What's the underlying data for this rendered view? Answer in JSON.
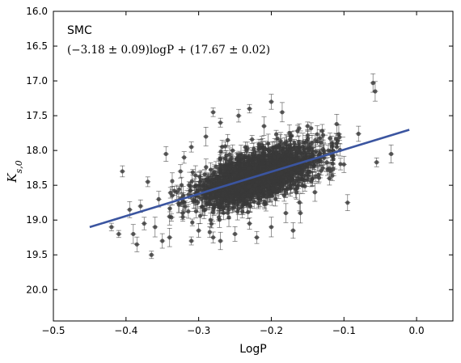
{
  "chart_data": {
    "type": "scatter",
    "title": "",
    "xlabel": "LogP",
    "ylabel_main": "K",
    "ylabel_sub": "s,0",
    "xlim": [
      -0.5,
      0.05
    ],
    "ylim": [
      16.0,
      20.45
    ],
    "y_inverted": true,
    "x_ticks": [
      -0.5,
      -0.4,
      -0.3,
      -0.2,
      -0.1,
      0.0
    ],
    "x_tick_labels": [
      "−0.5",
      "−0.4",
      "−0.3",
      "−0.2",
      "−0.1",
      "0.0"
    ],
    "y_ticks": [
      16.0,
      16.5,
      17.0,
      17.5,
      18.0,
      18.5,
      19.0,
      19.5,
      20.0
    ],
    "y_tick_labels": [
      "16.0",
      "16.5",
      "17.0",
      "17.5",
      "18.0",
      "18.5",
      "19.0",
      "19.5",
      "20.0"
    ],
    "grid": false,
    "annotation": {
      "title": "SMC",
      "formula": "(−3.18 ± 0.09)logP + (17.67 ± 0.02)"
    },
    "fit_line": {
      "slope": -3.18,
      "intercept": 17.67,
      "x_range": [
        -0.45,
        -0.01
      ],
      "color": "#3b55a0"
    },
    "point_color": "#3a3a3a",
    "series": [
      {
        "points": [
          [
            -0.06,
            17.03
          ],
          [
            -0.057,
            17.15
          ],
          [
            -0.055,
            18.17
          ],
          [
            -0.035,
            18.05
          ],
          [
            -0.08,
            17.76
          ],
          [
            -0.11,
            17.62
          ],
          [
            -0.095,
            18.75
          ],
          [
            -0.115,
            18.0
          ],
          [
            -0.13,
            17.72
          ],
          [
            -0.1,
            18.2
          ],
          [
            -0.405,
            18.3
          ],
          [
            -0.395,
            18.85
          ],
          [
            -0.37,
            18.45
          ],
          [
            -0.36,
            19.1
          ],
          [
            -0.355,
            18.7
          ],
          [
            -0.385,
            19.35
          ],
          [
            -0.39,
            19.2
          ],
          [
            -0.375,
            19.05
          ],
          [
            -0.42,
            19.1
          ],
          [
            -0.365,
            19.5
          ],
          [
            -0.35,
            19.3
          ],
          [
            -0.34,
            18.95
          ],
          [
            -0.33,
            18.6
          ],
          [
            -0.325,
            18.3
          ],
          [
            -0.32,
            18.1
          ],
          [
            -0.31,
            19.3
          ],
          [
            -0.3,
            19.15
          ],
          [
            -0.28,
            19.25
          ],
          [
            -0.28,
            17.45
          ],
          [
            -0.27,
            17.6
          ],
          [
            -0.26,
            17.85
          ],
          [
            -0.245,
            17.5
          ],
          [
            -0.23,
            17.4
          ],
          [
            -0.21,
            17.65
          ],
          [
            -0.2,
            17.3
          ],
          [
            -0.185,
            17.45
          ],
          [
            -0.175,
            17.75
          ],
          [
            -0.17,
            19.15
          ],
          [
            -0.25,
            19.2
          ],
          [
            -0.23,
            19.05
          ],
          [
            -0.22,
            19.25
          ],
          [
            -0.2,
            19.1
          ],
          [
            -0.18,
            18.9
          ],
          [
            -0.16,
            18.9
          ],
          [
            -0.15,
            17.65
          ],
          [
            -0.14,
            18.6
          ],
          [
            -0.135,
            18.35
          ],
          [
            -0.12,
            18.4
          ],
          [
            -0.29,
            17.8
          ],
          [
            -0.27,
            19.3
          ],
          [
            -0.34,
            19.25
          ],
          [
            -0.345,
            18.05
          ],
          [
            -0.31,
            17.95
          ],
          [
            -0.38,
            18.8
          ],
          [
            -0.41,
            19.2
          ]
        ]
      }
    ],
    "cloud": {
      "count": 1700,
      "x_mean": -0.22,
      "x_std": 0.042,
      "residual_std": 0.17
    }
  }
}
